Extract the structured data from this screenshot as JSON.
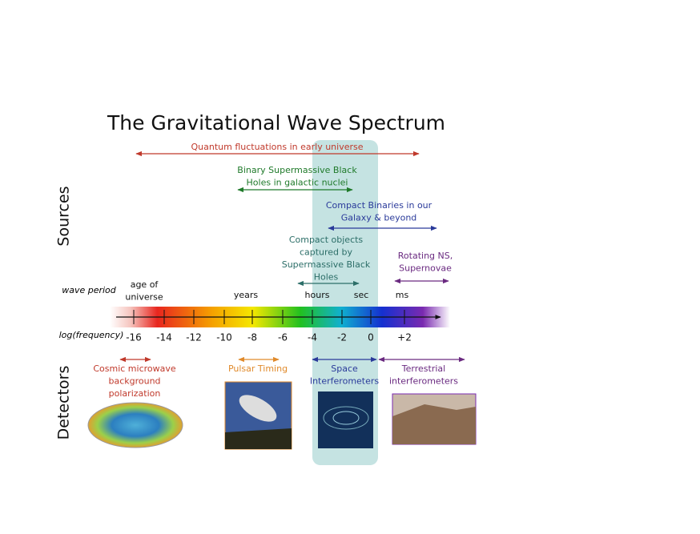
{
  "title": "The Gravitational Wave Spectrum",
  "side_labels": {
    "sources": "Sources",
    "detectors": "Detectors"
  },
  "sources": [
    {
      "lines": [
        "Quantum fluctuations in early universe"
      ]
    },
    {
      "lines": [
        "Binary Supermassive Black",
        "Holes in galactic nuclei"
      ]
    },
    {
      "lines": [
        "Compact Binaries in our",
        "Galaxy & beyond"
      ]
    },
    {
      "lines": [
        "Compact objects",
        "captured by",
        "Supermassive Black",
        "Holes"
      ]
    },
    {
      "lines": [
        "Rotating NS,",
        "Supernovae"
      ]
    }
  ],
  "axis": {
    "wave_period_label": "wave period",
    "wave_periods": [
      [
        "age of",
        "universe"
      ],
      [
        "years"
      ],
      [
        "hours"
      ],
      [
        "sec"
      ],
      [
        "ms"
      ]
    ],
    "frequency_label": "log(frequency)",
    "ticks": [
      "-16",
      "-14",
      "-12",
      "-10",
      "-8",
      "-6",
      "-4",
      "-2",
      "0",
      "+2"
    ]
  },
  "detectors": [
    {
      "lines": [
        "Cosmic microwave",
        "background",
        "polarization"
      ]
    },
    {
      "lines": [
        "Pulsar Timing"
      ]
    },
    {
      "lines": [
        "Space",
        "Interferometers"
      ]
    },
    {
      "lines": [
        "Terrestrial",
        "interferometers"
      ]
    }
  ]
}
